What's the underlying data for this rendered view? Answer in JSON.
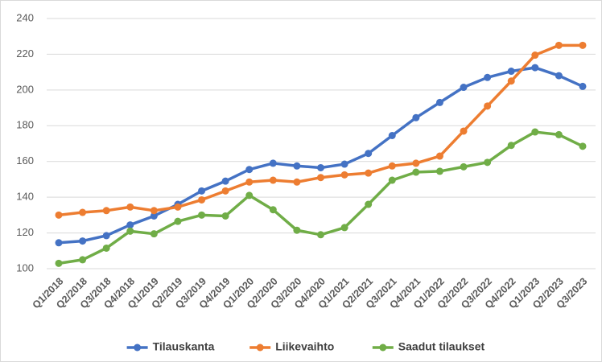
{
  "chart_data": {
    "type": "line",
    "categories": [
      "Q1/2018",
      "Q2/2018",
      "Q3/2018",
      "Q4/2018",
      "Q1/2019",
      "Q2/2019",
      "Q3/2019",
      "Q4/2019",
      "Q1/2020",
      "Q2/2020",
      "Q3/2020",
      "Q4/2020",
      "Q1/2021",
      "Q2/2021",
      "Q3/2021",
      "Q4/2021",
      "Q1/2022",
      "Q2/2022",
      "Q3/2022",
      "Q4/2022",
      "Q1/2023",
      "Q2/2023",
      "Q3/2023"
    ],
    "series": [
      {
        "name": "Tilauskanta",
        "color": "#4472c4",
        "values": [
          114.5,
          115.5,
          118.5,
          124.5,
          129.5,
          136,
          143.5,
          149,
          155.5,
          159,
          157.5,
          156.5,
          158.5,
          164.5,
          174.5,
          184.5,
          193,
          201.5,
          207,
          210.5,
          212.5,
          208,
          202
        ]
      },
      {
        "name": "Liikevaihto",
        "color": "#ed7d31",
        "values": [
          130,
          131.5,
          132.5,
          134.5,
          132.5,
          134.5,
          138.5,
          143.5,
          148.5,
          149.5,
          148.5,
          151,
          152.5,
          153.5,
          157.5,
          159,
          163,
          177,
          191,
          205,
          219.5,
          225,
          225
        ]
      },
      {
        "name": "Saadut tilaukset",
        "color": "#70ad47",
        "values": [
          103,
          105,
          111.5,
          121,
          119.5,
          126.5,
          130,
          129.5,
          141,
          133,
          121.5,
          119,
          123,
          136,
          149.5,
          154,
          154.5,
          157,
          159.5,
          169,
          176.5,
          175,
          168.5
        ]
      }
    ],
    "ylim": [
      100,
      240
    ],
    "yticks": [
      100,
      120,
      140,
      160,
      180,
      200,
      220,
      240
    ],
    "grid": true,
    "legend": "bottom"
  }
}
